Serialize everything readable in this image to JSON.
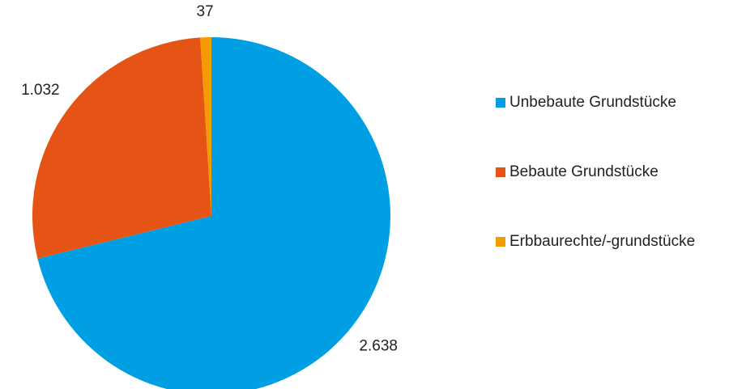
{
  "chart_data": {
    "type": "pie",
    "categories": [
      "Unbebaute Grundstücke",
      "Bebaute Grundstücke",
      "Erbbaurechte/-grundstücke"
    ],
    "values": [
      2638,
      1032,
      37
    ],
    "value_labels": [
      "2.638",
      "1.032",
      "37"
    ],
    "colors": [
      "#009fe3",
      "#e65415",
      "#f39c00"
    ],
    "legend": "right"
  }
}
